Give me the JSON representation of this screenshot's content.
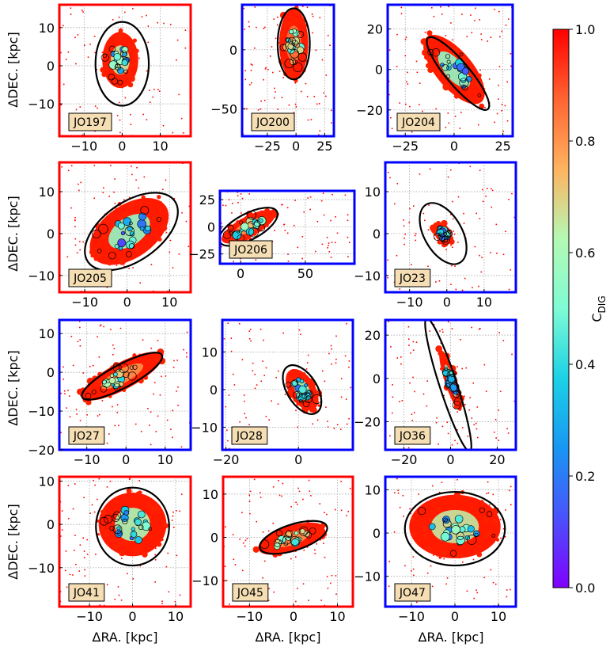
{
  "chart_data": {
    "type": "scatter",
    "title": "",
    "xlabel": "ΔRA. [kpc]",
    "ylabel": "ΔDEC. [kpc]",
    "colorbar": {
      "label": "C",
      "label_subscript": "DIG",
      "range": [
        0.0,
        1.0
      ],
      "ticks": [
        "0.0",
        "0.2",
        "0.4",
        "0.6",
        "0.8",
        "1.0"
      ],
      "colormap": "rainbow"
    },
    "panels": [
      {
        "name": "JO197",
        "frame": "#ff0000",
        "xlim": [
          -16.5,
          18
        ],
        "ylim": [
          -18.5,
          16
        ],
        "xticks": [
          -10,
          0,
          10
        ],
        "yticks": [
          -10,
          0,
          10
        ],
        "xlabels": [
          "−10",
          "0",
          "10"
        ],
        "ylabels": [
          "−10",
          "0",
          "10"
        ],
        "contour": {
          "type": "ellipse",
          "cx": 0,
          "cy": 0.5,
          "rx": 7,
          "ry": 11,
          "angle": 0
        },
        "emission": {
          "cx": -0.5,
          "cy": 1.5,
          "rx": 4.5,
          "ry": 7,
          "angle": 0,
          "core_cdig": 0.3
        }
      },
      {
        "name": "JO200",
        "frame": "#0000ff",
        "xlim": [
          -47,
          33
        ],
        "ylim": [
          -73,
          38
        ],
        "xticks": [
          -25,
          0,
          25
        ],
        "yticks": [
          -50,
          0
        ],
        "xlabels": [
          "−25",
          "0",
          "25"
        ],
        "ylabels": [
          "−50",
          "0"
        ],
        "contour": {
          "type": "ellipse",
          "cx": -2,
          "cy": 5,
          "rx": 14,
          "ry": 30,
          "angle": 0
        },
        "emission": {
          "cx": -2,
          "cy": 5,
          "rx": 12,
          "ry": 28,
          "angle": 0,
          "core_cdig": 0.5
        }
      },
      {
        "name": "JO204",
        "frame": "#0000ff",
        "xlim": [
          -34,
          30
        ],
        "ylim": [
          -33,
          32
        ],
        "xticks": [
          -25,
          0,
          25
        ],
        "yticks": [
          -20,
          0,
          20
        ],
        "xlabels": [
          "−25",
          "0",
          "25"
        ],
        "ylabels": [
          "−20",
          "0",
          "20"
        ],
        "contour": {
          "type": "ellipse",
          "cx": 2,
          "cy": -2,
          "rx": 6,
          "ry": 23,
          "angle": 40
        },
        "emission": {
          "cx": 0,
          "cy": 0,
          "rx": 9,
          "ry": 20,
          "angle": 40,
          "core_cdig": 0.2
        }
      },
      {
        "name": "JO205",
        "frame": "#ff0000",
        "xlim": [
          -16,
          15
        ],
        "ylim": [
          -14,
          17
        ],
        "xticks": [
          -10,
          0,
          10
        ],
        "yticks": [
          -10,
          0,
          10
        ],
        "xlabels": [
          "−10",
          "0",
          "10"
        ],
        "ylabels": [
          "−10",
          "0",
          "10"
        ],
        "contour": {
          "type": "ellipse",
          "cx": 1,
          "cy": 0.5,
          "rx": 12.5,
          "ry": 7,
          "angle": 35
        },
        "emission": {
          "cx": 0.5,
          "cy": 0.5,
          "rx": 10,
          "ry": 6,
          "angle": 35,
          "core_cdig": 0.2
        }
      },
      {
        "name": "JO206",
        "frame": "#0000ff",
        "xlim": [
          -16,
          88
        ],
        "ylim": [
          -34,
          33
        ],
        "xticks": [
          0,
          50
        ],
        "yticks": [
          -25,
          0,
          25
        ],
        "xlabels": [
          "0",
          "50"
        ],
        "ylabels": [
          "−25",
          "0",
          "25"
        ],
        "contour": {
          "type": "ellipse",
          "cx": 6,
          "cy": 0,
          "rx": 25,
          "ry": 12,
          "angle": 28
        },
        "emission": {
          "cx": 6,
          "cy": 0,
          "rx": 22,
          "ry": 9,
          "angle": 28,
          "core_cdig": 0.45
        }
      },
      {
        "name": "JO23",
        "frame": "#0000ff",
        "xlim": [
          -16.5,
          18.5
        ],
        "ylim": [
          -14,
          17
        ],
        "xticks": [
          -10,
          0,
          10
        ],
        "yticks": [
          -10,
          0,
          10
        ],
        "xlabels": [
          "−10",
          "0",
          "10"
        ],
        "ylabels": [
          "−10",
          "0",
          "10"
        ],
        "contour": {
          "type": "ellipse",
          "cx": -1,
          "cy": 0,
          "rx": 9,
          "ry": 4.5,
          "angle": -60
        },
        "emission": {
          "cx": -1,
          "cy": 0,
          "rx": 3,
          "ry": 1.8,
          "angle": -55,
          "core_cdig": 0.15
        }
      },
      {
        "name": "JO27",
        "frame": "#0000ff",
        "xlim": [
          -17,
          16.5
        ],
        "ylim": [
          -20,
          13.5
        ],
        "xticks": [
          -10,
          0,
          10
        ],
        "yticks": [
          -20,
          -10,
          0,
          10
        ],
        "xlabels": [
          "−10",
          "0",
          "10"
        ],
        "ylabels": [
          "−20",
          "−10",
          "0",
          "10"
        ],
        "contour": {
          "type": "ellipse",
          "cx": -1,
          "cy": -1,
          "rx": 11.5,
          "ry": 3,
          "angle": 28
        },
        "emission": {
          "cx": -1,
          "cy": -1,
          "rx": 11,
          "ry": 3.3,
          "angle": 28,
          "core_cdig": 0.45
        }
      },
      {
        "name": "JO28",
        "frame": "#0000ff",
        "xlim": [
          -21,
          15
        ],
        "ylim": [
          -16,
          18.5
        ],
        "xticks": [
          -20,
          0
        ],
        "yticks": [
          -10,
          0,
          10
        ],
        "xlabels": [
          "−20",
          "0"
        ],
        "ylabels": [
          "−10",
          "0",
          "10"
        ],
        "contour": {
          "type": "ellipse",
          "cx": 1,
          "cy": 0,
          "rx": 7.5,
          "ry": 4,
          "angle": -58
        },
        "emission": {
          "cx": 1,
          "cy": 0,
          "rx": 6,
          "ry": 3.3,
          "angle": -58,
          "core_cdig": 0.2
        }
      },
      {
        "name": "JO36",
        "frame": "#0000ff",
        "xlim": [
          -28,
          28
        ],
        "ylim": [
          -33,
          27
        ],
        "xticks": [
          -20,
          0,
          20
        ],
        "yticks": [
          -20,
          0,
          20
        ],
        "xlabels": [
          "−20",
          "0",
          "20"
        ],
        "ylabels": [
          "−20",
          "0",
          "20"
        ],
        "contour": {
          "type": "ellipse",
          "cx": -1,
          "cy": -3,
          "rx": 30,
          "ry": 4,
          "angle": -72
        },
        "emission": {
          "cx": 0,
          "cy": -1,
          "rx": 13,
          "ry": 2.6,
          "angle": -72,
          "core_cdig": 0.15
        }
      },
      {
        "name": "JO41",
        "frame": "#ff0000",
        "xlim": [
          -17,
          13.5
        ],
        "ylim": [
          -19,
          11
        ],
        "xticks": [
          -10,
          0,
          10
        ],
        "yticks": [
          -10,
          0,
          10
        ],
        "xlabels": [
          "−10",
          "0",
          "10"
        ],
        "ylabels": [
          "−10",
          "0",
          "10"
        ],
        "contour": {
          "type": "ellipse",
          "cx": 0,
          "cy": -0.5,
          "rx": 8.5,
          "ry": 9,
          "angle": 0
        },
        "emission": {
          "cx": 0,
          "cy": 0,
          "rx": 7.5,
          "ry": 7,
          "angle": 0,
          "core_cdig": 0.25
        }
      },
      {
        "name": "JO45",
        "frame": "#ff0000",
        "xlim": [
          -16,
          13.5
        ],
        "ylim": [
          -16,
          14
        ],
        "xticks": [
          -10,
          0,
          10
        ],
        "yticks": [
          -10,
          0,
          10
        ],
        "xlabels": [
          "−10",
          "0",
          "10"
        ],
        "ylabels": [
          "−10",
          "0",
          "10"
        ],
        "contour": {
          "type": "ellipse",
          "cx": 0,
          "cy": 0,
          "rx": 8,
          "ry": 3,
          "angle": 18
        },
        "emission": {
          "cx": -0.5,
          "cy": -0.3,
          "rx": 7.5,
          "ry": 2.8,
          "angle": 18,
          "core_cdig": 0.45
        }
      },
      {
        "name": "JO47",
        "frame": "#0000ff",
        "xlim": [
          -16,
          14
        ],
        "ylim": [
          -17,
          13
        ],
        "xticks": [
          -10,
          0,
          10
        ],
        "yticks": [
          -10,
          0,
          10
        ],
        "xlabels": [
          "−10",
          "0",
          "10"
        ],
        "ylabels": [
          "−10",
          "0",
          "10"
        ],
        "contour": {
          "type": "ellipse",
          "cx": 0,
          "cy": 1,
          "rx": 11.5,
          "ry": 8.5,
          "angle": 0
        },
        "emission": {
          "cx": 0,
          "cy": 1.5,
          "rx": 10,
          "ry": 7,
          "angle": 0,
          "core_cdig": 0.3
        }
      }
    ]
  }
}
